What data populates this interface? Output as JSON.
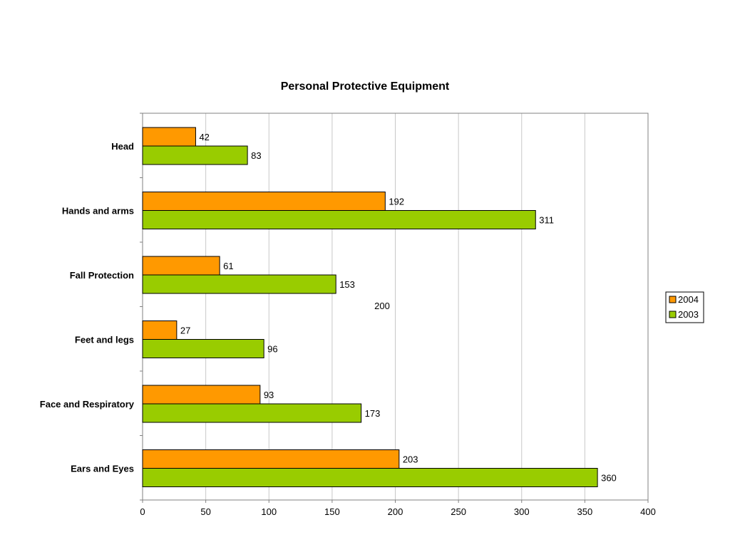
{
  "chart_data": {
    "type": "bar",
    "orientation": "horizontal",
    "title": "Personal Protective Equipment",
    "categories": [
      "Head",
      "Hands and arms",
      "Fall Protection",
      "Feet and legs",
      "Face and Respiratory",
      "Ears and Eyes"
    ],
    "series": [
      {
        "name": "2004",
        "color": "#ff9900",
        "values": [
          42,
          192,
          61,
          27,
          93,
          203
        ]
      },
      {
        "name": "2003",
        "color": "#99cc00",
        "values": [
          83,
          311,
          153,
          96,
          173,
          360
        ]
      }
    ],
    "xlim": [
      0,
      400
    ],
    "x_ticks": [
      0,
      50,
      100,
      150,
      200,
      250,
      300,
      350,
      400
    ],
    "grid": "vertical",
    "legend_position": "right",
    "annotation": "200",
    "data_labels": true
  }
}
